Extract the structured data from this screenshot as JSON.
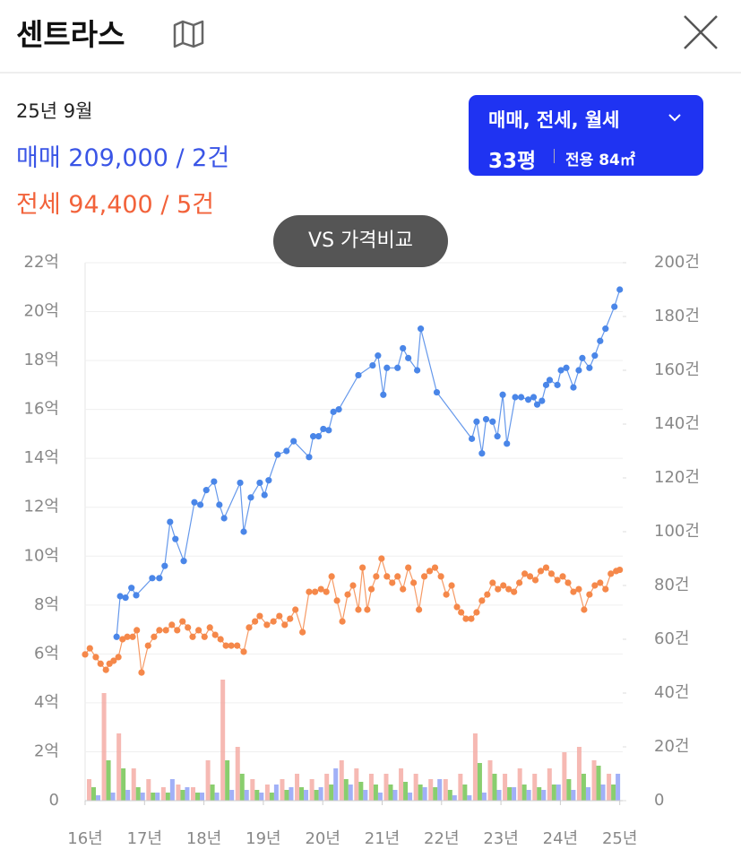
{
  "header": {
    "title": "센트라스"
  },
  "info": {
    "date": "25년 9월",
    "sale": "매매 209,000 / 2건",
    "rent": "전세 94,400 / 5건"
  },
  "filter": {
    "types": "매매, 전세, 월세",
    "pyeong": "33평",
    "area": "전용 84㎡"
  },
  "compare_button": "VS 가격비교",
  "chart_data": {
    "type": "line",
    "xlim": [
      16,
      25.05
    ],
    "xticks": [
      {
        "value": 16,
        "label": "16년"
      },
      {
        "value": 17,
        "label": "17년"
      },
      {
        "value": 18,
        "label": "18년"
      },
      {
        "value": 19,
        "label": "19년"
      },
      {
        "value": 20,
        "label": "20년"
      },
      {
        "value": 21,
        "label": "21년"
      },
      {
        "value": 22,
        "label": "22년"
      },
      {
        "value": 23,
        "label": "23년"
      },
      {
        "value": 24,
        "label": "24년"
      },
      {
        "value": 25,
        "label": "25년"
      }
    ],
    "ylim": [
      0,
      22
    ],
    "yticks": [
      0,
      {
        "value": 2,
        "label": "2억"
      },
      {
        "value": 4,
        "label": "4억"
      },
      {
        "value": 6,
        "label": "6억"
      },
      {
        "value": 8,
        "label": "8억"
      },
      {
        "value": 10,
        "label": "10억"
      },
      {
        "value": 12,
        "label": "12억"
      },
      {
        "value": 14,
        "label": "14억"
      },
      {
        "value": 16,
        "label": "16억"
      },
      {
        "value": 18,
        "label": "18억"
      },
      {
        "value": 20,
        "label": "20억"
      },
      {
        "value": 22,
        "label": "22억"
      }
    ],
    "y2lim": [
      0,
      200
    ],
    "y2ticks": [
      0,
      {
        "value": 20,
        "label": "20건"
      },
      {
        "value": 40,
        "label": "40건"
      },
      {
        "value": 60,
        "label": "60건"
      },
      {
        "value": 80,
        "label": "80건"
      },
      {
        "value": 100,
        "label": "100건"
      },
      {
        "value": 120,
        "label": "120건"
      },
      {
        "value": 140,
        "label": "140건"
      },
      {
        "value": 160,
        "label": "160건"
      },
      {
        "value": 180,
        "label": "180건"
      },
      {
        "value": 200,
        "label": "200건"
      }
    ],
    "grid": true,
    "series": [
      {
        "type": "line",
        "color": "#4a86e8",
        "x": [
          16.53,
          16.59,
          16.68,
          16.78,
          16.86,
          17.13,
          17.25,
          17.34,
          17.43,
          17.52,
          17.66,
          17.84,
          17.94,
          18.04,
          18.17,
          18.26,
          18.34,
          18.61,
          18.67,
          18.79,
          18.94,
          19.02,
          19.09,
          19.24,
          19.39,
          19.51,
          19.77,
          19.84,
          19.93,
          20.01,
          20.1,
          20.18,
          20.27,
          20.6,
          20.84,
          20.93,
          21.02,
          21.08,
          21.26,
          21.35,
          21.44,
          21.59,
          21.65,
          21.92,
          22.51,
          22.59,
          22.68,
          22.75,
          22.86,
          22.94,
          23.03,
          23.1,
          23.24,
          23.34,
          23.46,
          23.55,
          23.61,
          23.69,
          23.76,
          23.82,
          23.95,
          24.01,
          24.1,
          24.22,
          24.31,
          24.37,
          24.49,
          24.58,
          24.67,
          24.76,
          24.91,
          25.0
        ],
        "values": [
          6.7,
          8.36,
          8.3,
          8.7,
          8.4,
          9.1,
          9.1,
          9.6,
          11.4,
          10.7,
          9.8,
          12.2,
          12.1,
          12.7,
          13.05,
          12.1,
          11.55,
          13.0,
          11.0,
          12.4,
          13.0,
          12.5,
          13.1,
          14.15,
          14.3,
          14.7,
          14.05,
          14.9,
          14.9,
          15.2,
          15.15,
          15.9,
          16.0,
          17.4,
          17.8,
          18.2,
          16.6,
          17.7,
          17.7,
          18.5,
          18.1,
          17.6,
          19.3,
          16.7,
          14.8,
          15.5,
          14.2,
          15.6,
          15.5,
          14.9,
          16.6,
          14.6,
          16.5,
          16.5,
          16.4,
          16.5,
          16.2,
          16.35,
          17.0,
          17.2,
          17.0,
          17.6,
          17.7,
          16.9,
          17.6,
          18.1,
          17.7,
          18.2,
          18.8,
          19.3,
          20.2,
          20.9
        ]
      },
      {
        "type": "line",
        "color": "#f5884a",
        "x": [
          16.0,
          16.08,
          16.18,
          16.26,
          16.35,
          16.41,
          16.48,
          16.56,
          16.63,
          16.71,
          16.8,
          16.87,
          16.95,
          17.06,
          17.16,
          17.25,
          17.36,
          17.46,
          17.55,
          17.64,
          17.73,
          17.81,
          17.91,
          18.01,
          18.1,
          18.19,
          18.28,
          18.37,
          18.46,
          18.56,
          18.67,
          18.76,
          18.86,
          18.94,
          19.06,
          19.17,
          19.27,
          19.36,
          19.45,
          19.54,
          19.66,
          19.77,
          19.87,
          19.97,
          20.06,
          20.15,
          20.24,
          20.33,
          20.42,
          20.51,
          20.6,
          20.67,
          20.75,
          20.82,
          20.9,
          20.99,
          21.08,
          21.17,
          21.26,
          21.35,
          21.44,
          21.53,
          21.62,
          21.71,
          21.8,
          21.89,
          21.99,
          22.08,
          22.17,
          22.26,
          22.33,
          22.41,
          22.5,
          22.59,
          22.68,
          22.77,
          22.86,
          22.95,
          23.04,
          23.13,
          23.22,
          23.31,
          23.4,
          23.49,
          23.58,
          23.67,
          23.76,
          23.85,
          23.95,
          24.04,
          24.13,
          24.22,
          24.31,
          24.4,
          24.49,
          24.58,
          24.67,
          24.76,
          24.85,
          24.94,
          25.0
        ],
        "values": [
          5.98,
          6.23,
          5.87,
          5.6,
          5.35,
          5.6,
          5.72,
          5.87,
          6.6,
          6.7,
          6.7,
          6.97,
          5.24,
          6.34,
          6.7,
          6.97,
          6.97,
          7.19,
          6.97,
          7.33,
          7.08,
          6.7,
          6.97,
          6.7,
          7.08,
          6.78,
          6.6,
          6.34,
          6.34,
          6.34,
          6.09,
          7.08,
          7.33,
          7.55,
          7.19,
          7.33,
          7.55,
          7.19,
          7.44,
          7.81,
          6.89,
          8.54,
          8.54,
          8.65,
          8.54,
          9.17,
          8.18,
          7.33,
          8.43,
          8.8,
          7.81,
          9.53,
          7.81,
          8.65,
          9.17,
          9.9,
          9.17,
          8.91,
          9.17,
          8.65,
          9.53,
          8.91,
          7.81,
          9.17,
          9.39,
          9.53,
          9.17,
          8.43,
          8.8,
          7.92,
          7.7,
          7.44,
          7.44,
          7.7,
          8.18,
          8.43,
          8.91,
          8.65,
          8.8,
          8.65,
          8.54,
          8.91,
          9.28,
          9.17,
          9.02,
          9.39,
          9.53,
          9.28,
          9.02,
          9.17,
          8.91,
          8.54,
          8.65,
          7.81,
          8.43,
          8.8,
          8.91,
          8.65,
          9.28,
          9.39,
          9.44
        ]
      },
      {
        "type": "bar",
        "axis": "y2",
        "color": "#f4a7a0",
        "x": [
          16,
          16.25,
          16.5,
          16.75,
          17,
          17.25,
          17.5,
          17.75,
          18,
          18.25,
          18.5,
          18.75,
          19,
          19.25,
          19.5,
          19.75,
          20,
          20.25,
          20.5,
          20.75,
          21,
          21.25,
          21.5,
          21.75,
          22,
          22.25,
          22.5,
          22.75,
          23,
          23.25,
          23.5,
          23.75,
          24,
          24.25,
          24.5,
          24.75
        ],
        "values": [
          8,
          40,
          25,
          12,
          8,
          5,
          6,
          5,
          15,
          45,
          20,
          8,
          6,
          8,
          10,
          8,
          10,
          15,
          12,
          10,
          10,
          12,
          10,
          8,
          8,
          10,
          25,
          15,
          10,
          12,
          10,
          12,
          18,
          20,
          15,
          10
        ]
      },
      {
        "type": "bar",
        "axis": "y2",
        "color": "#6cc24a",
        "x": [
          16,
          16.25,
          16.5,
          16.75,
          17,
          17.25,
          17.5,
          17.75,
          18,
          18.25,
          18.5,
          18.75,
          19,
          19.25,
          19.5,
          19.75,
          20,
          20.25,
          20.5,
          20.75,
          21,
          21.25,
          21.5,
          21.75,
          22,
          22.25,
          22.5,
          22.75,
          23,
          23.25,
          23.5,
          23.75,
          24,
          24.25,
          24.5,
          24.75
        ],
        "values": [
          5,
          15,
          12,
          5,
          3,
          3,
          4,
          3,
          6,
          15,
          10,
          4,
          3,
          4,
          5,
          4,
          6,
          8,
          7,
          6,
          6,
          7,
          6,
          5,
          4,
          6,
          14,
          10,
          5,
          6,
          5,
          6,
          8,
          10,
          13,
          6
        ]
      },
      {
        "type": "bar",
        "axis": "y2",
        "color": "#8a9cf5",
        "x": [
          16,
          16.25,
          16.5,
          16.75,
          17,
          17.25,
          17.5,
          17.75,
          18,
          18.25,
          18.5,
          18.75,
          19,
          19.25,
          19.5,
          19.75,
          20,
          20.25,
          20.5,
          20.75,
          21,
          21.25,
          21.5,
          21.75,
          22,
          22.25,
          22.5,
          22.75,
          23,
          23.25,
          23.5,
          23.75,
          24,
          24.25,
          24.5,
          24.75
        ],
        "values": [
          2,
          3,
          4,
          3,
          3,
          8,
          5,
          3,
          3,
          4,
          4,
          3,
          6,
          5,
          4,
          5,
          12,
          6,
          4,
          3,
          4,
          3,
          5,
          8,
          2,
          2,
          3,
          4,
          5,
          4,
          4,
          6,
          4,
          5,
          6,
          10
        ]
      }
    ]
  }
}
